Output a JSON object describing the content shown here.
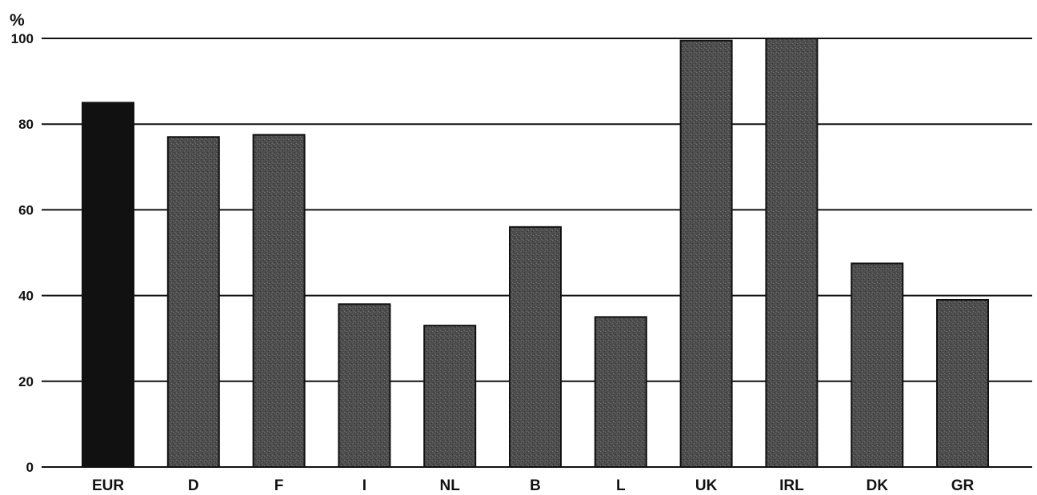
{
  "chart_data": {
    "type": "bar",
    "unit": "%",
    "categories": [
      "EUR",
      "D",
      "F",
      "I",
      "NL",
      "B",
      "L",
      "UK",
      "IRL",
      "DK",
      "GR"
    ],
    "values": [
      85,
      77,
      77.5,
      38,
      33,
      56,
      35,
      99.5,
      100,
      47.5,
      39
    ],
    "y_ticks": [
      "0",
      "20",
      "40",
      "60",
      "80",
      "100"
    ],
    "ylim": [
      0,
      100
    ],
    "grid": true,
    "colors": {
      "highlight_bar": "#111111",
      "bar": "#4a4a4a",
      "grid": "#111111"
    },
    "highlight_category": "EUR"
  }
}
